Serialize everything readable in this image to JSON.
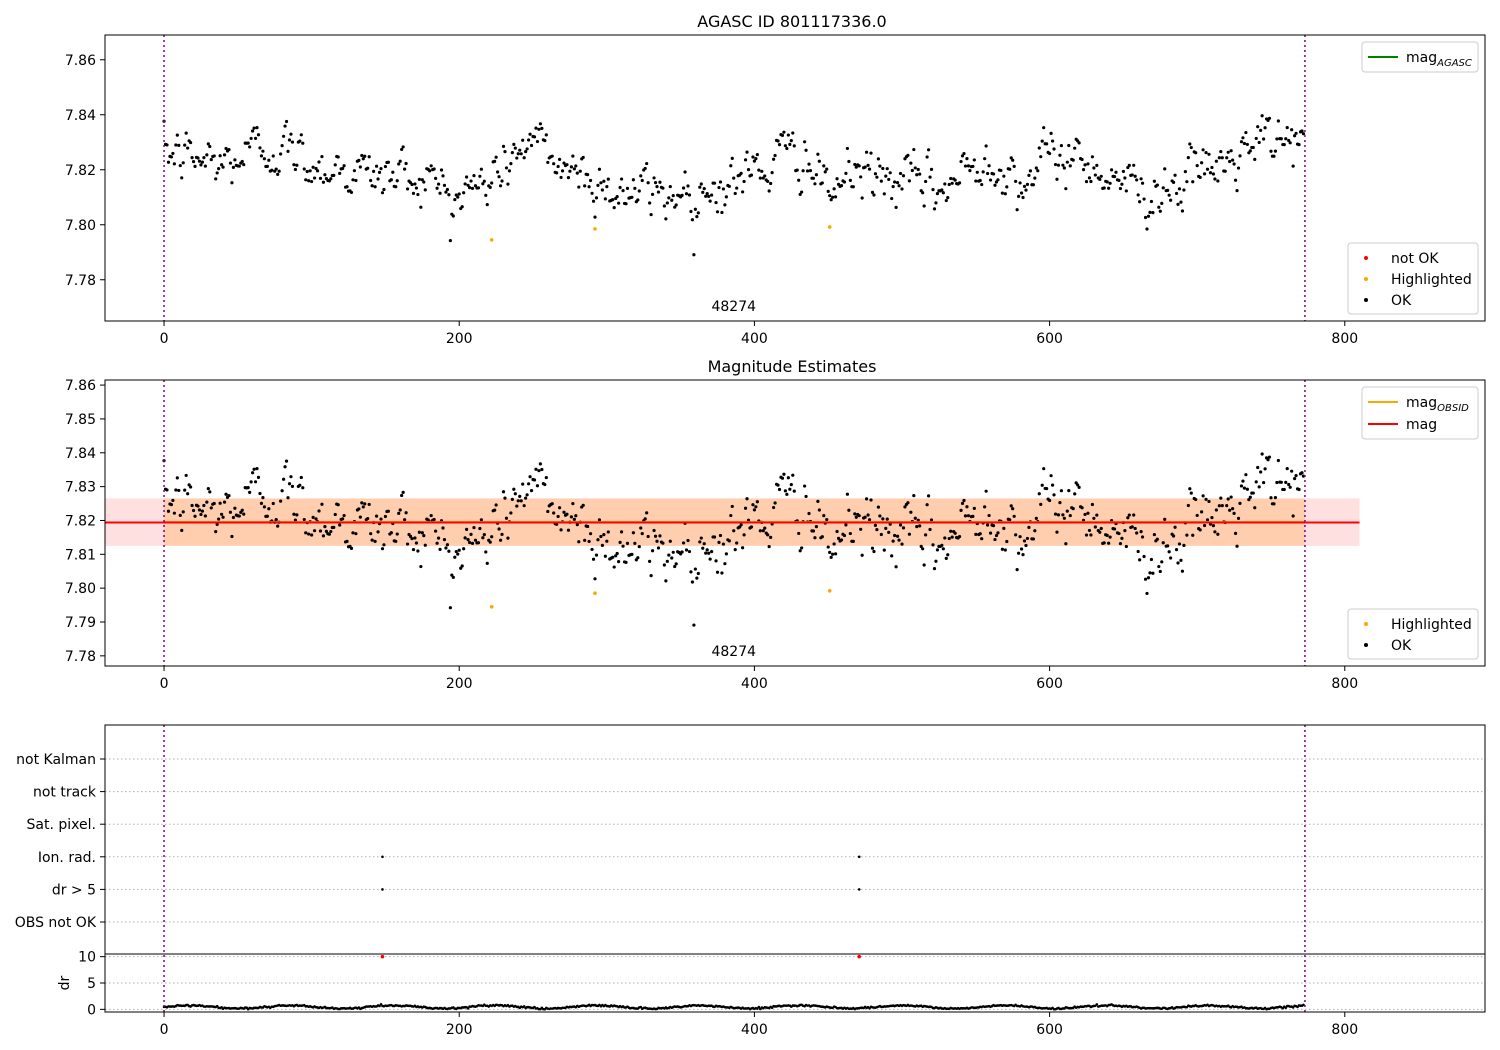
{
  "chart_data": [
    {
      "type": "scatter",
      "title": "AGASC ID 801117336.0",
      "annotation": "48274",
      "xlim": [
        -40,
        895
      ],
      "ylim": [
        7.765,
        7.869
      ],
      "xticks": [
        0,
        200,
        400,
        600,
        800
      ],
      "yticks": [
        7.78,
        7.8,
        7.82,
        7.84,
        7.86
      ],
      "ytick_labels": [
        "7.78",
        "7.80",
        "7.82",
        "7.84",
        "7.86"
      ],
      "vlines": [
        0,
        773
      ],
      "legend_lines": [
        {
          "label": "mag",
          "sub": "AGASC",
          "color": "#008000"
        }
      ],
      "legend_points": [
        {
          "label": "not OK",
          "color": "#ff0000"
        },
        {
          "label": "Highlighted",
          "color": "#ffa500"
        },
        {
          "label": "OK",
          "color": "#000000"
        }
      ],
      "series": [
        {
          "name": "OK",
          "color": "#000000",
          "n": 773,
          "mean": 7.8195,
          "spread": 0.0062,
          "trend": [
            [
              0,
              7.826
            ],
            [
              40,
              7.822
            ],
            [
              70,
              7.829
            ],
            [
              100,
              7.823
            ],
            [
              140,
              7.818
            ],
            [
              175,
              7.818
            ],
            [
              200,
              7.81
            ],
            [
              220,
              7.816
            ],
            [
              245,
              7.83
            ],
            [
              270,
              7.822
            ],
            [
              300,
              7.814
            ],
            [
              320,
              7.811
            ],
            [
              350,
              7.812
            ],
            [
              380,
              7.814
            ],
            [
              410,
              7.822
            ],
            [
              435,
              7.827
            ],
            [
              445,
              7.811
            ],
            [
              470,
              7.819
            ],
            [
              500,
              7.815
            ],
            [
              530,
              7.813
            ],
            [
              560,
              7.826
            ],
            [
              580,
              7.816
            ],
            [
              610,
              7.826
            ],
            [
              640,
              7.82
            ],
            [
              660,
              7.812
            ],
            [
              690,
              7.816
            ],
            [
              720,
              7.822
            ],
            [
              740,
              7.828
            ],
            [
              773,
              7.833
            ]
          ]
        },
        {
          "name": "Highlighted",
          "color": "#ffa500",
          "x": [
            222,
            292,
            451
          ],
          "y": [
            7.7945,
            7.7985,
            7.7992
          ]
        },
        {
          "name": "not OK",
          "color": "#ff0000",
          "x": [],
          "y": []
        }
      ]
    },
    {
      "type": "scatter",
      "title": "Magnitude Estimates",
      "annotation": "48274",
      "xlim": [
        -40,
        895
      ],
      "ylim": [
        7.777,
        7.8615
      ],
      "xticks": [
        0,
        200,
        400,
        600,
        800
      ],
      "yticks": [
        7.78,
        7.79,
        7.8,
        7.81,
        7.82,
        7.83,
        7.84,
        7.85,
        7.86
      ],
      "ytick_labels": [
        "7.78",
        "7.79",
        "7.80",
        "7.81",
        "7.82",
        "7.83",
        "7.84",
        "7.85",
        "7.86"
      ],
      "vlines": [
        0,
        773
      ],
      "hlines": [
        {
          "label": "mag",
          "sub": "OBSID",
          "color": "#ffa500",
          "y": 7.8195,
          "x": [
            0,
            773
          ]
        },
        {
          "label": "mag",
          "sub": "",
          "color": "#ff0000",
          "y": 7.8194,
          "x": [
            -40,
            810
          ]
        }
      ],
      "bands": [
        {
          "y": [
            7.8125,
            7.8265
          ],
          "x": [
            0,
            773
          ],
          "color": "#ffa500",
          "opacity": 0.22
        },
        {
          "y": [
            7.8125,
            7.8265
          ],
          "x": [
            -40,
            810
          ],
          "color": "#ff0000",
          "opacity": 0.12
        }
      ],
      "legend_points": [
        {
          "label": "Highlighted",
          "color": "#ffa500"
        },
        {
          "label": "OK",
          "color": "#000000"
        }
      ],
      "series": [
        {
          "name": "OK",
          "color": "#000000",
          "same_as_panel": 0
        },
        {
          "name": "Highlighted",
          "color": "#ffa500",
          "x": [
            222,
            292,
            451
          ],
          "y": [
            7.7945,
            7.7985,
            7.7992
          ]
        }
      ]
    },
    {
      "type": "scatter",
      "flags": [
        "not Kalman",
        "not track",
        "Sat. pixel.",
        "Ion. rad.",
        "dr > 5",
        "OBS not OK"
      ],
      "flag_events": [
        {
          "flag": "Ion. rad.",
          "x": [
            148,
            471
          ]
        },
        {
          "flag": "dr > 5",
          "x": [
            148,
            471
          ]
        }
      ],
      "xlim": [
        -40,
        895
      ],
      "xticks": [
        0,
        200,
        400,
        600,
        800
      ],
      "vlines": [
        0,
        773
      ],
      "dr": {
        "ylabel": "dr",
        "ylim": [
          -0.5,
          10.5
        ],
        "yticks": [
          0,
          5,
          10
        ],
        "n": 773,
        "mean": 0.45,
        "outliers": {
          "x": [
            148,
            471
          ],
          "y": [
            10,
            10
          ],
          "color": "#ff0000"
        }
      }
    }
  ]
}
